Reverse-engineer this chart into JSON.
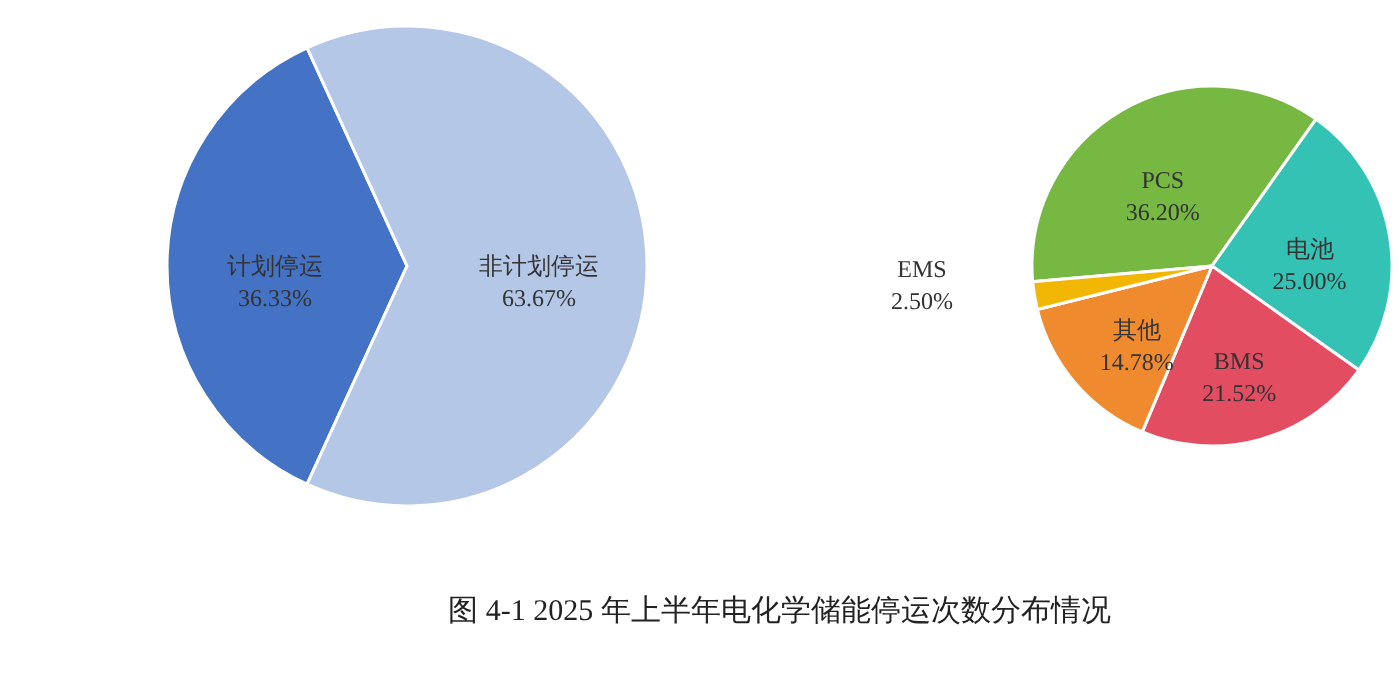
{
  "chart_data": [
    {
      "type": "pie",
      "categories": [
        "计划停运",
        "非计划停运"
      ],
      "values": [
        36.33,
        63.67
      ],
      "colors": [
        "#4472c4",
        "#b4c7e7"
      ],
      "value_labels": [
        "36.33%",
        "63.67%"
      ],
      "annotations": [
        "图 4-1 2025 年上半年电化学储能停运次数分布情况"
      ]
    },
    {
      "type": "pie",
      "categories": [
        "PCS",
        "电池",
        "BMS",
        "其他",
        "EMS"
      ],
      "values": [
        36.2,
        25.0,
        21.52,
        14.78,
        2.5
      ],
      "colors": [
        "#77b843",
        "#34c2b4",
        "#e24d62",
        "#f08a2e",
        "#f2b705"
      ],
      "value_labels": [
        "36.20%",
        "25.00%",
        "21.52%",
        "14.78%",
        "2.50%"
      ]
    }
  ]
}
